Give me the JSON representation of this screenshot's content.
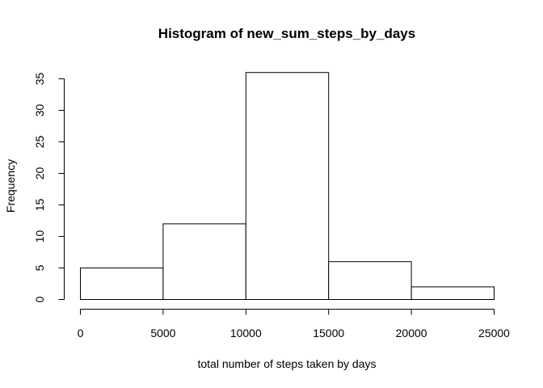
{
  "chart_data": {
    "type": "bar",
    "title": "Histogram of new_sum_steps_by_days",
    "xlabel": "total number of steps taken by days",
    "ylabel": "Frequency",
    "bins": [
      {
        "from": 0,
        "to": 5000,
        "count": 5
      },
      {
        "from": 5000,
        "to": 10000,
        "count": 12
      },
      {
        "from": 10000,
        "to": 15000,
        "count": 36
      },
      {
        "from": 15000,
        "to": 20000,
        "count": 6
      },
      {
        "from": 20000,
        "to": 25000,
        "count": 2
      }
    ],
    "xlim": [
      0,
      25000
    ],
    "ylim": [
      0,
      36
    ],
    "x_ticks": [
      0,
      5000,
      10000,
      15000,
      20000,
      25000
    ],
    "y_ticks": [
      0,
      5,
      10,
      15,
      20,
      25,
      30,
      35
    ],
    "grid": false,
    "colors": {
      "bar_fill": "#ffffff",
      "bar_stroke": "#000000"
    }
  }
}
